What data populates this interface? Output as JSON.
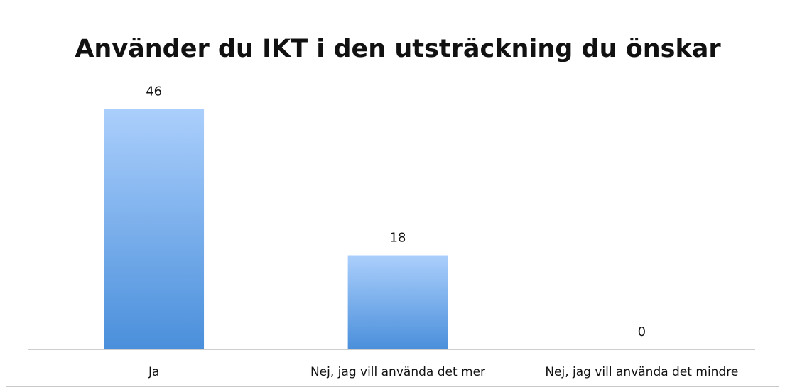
{
  "chart_data": {
    "type": "bar",
    "title": "Använder du IKT i den utsträckning du önskar",
    "categories": [
      "Ja",
      "Nej, jag vill använda det mer",
      "Nej, jag vill använda det mindre"
    ],
    "values": [
      46,
      18,
      0
    ],
    "color": "#5b9be0",
    "ylim": [
      0,
      50
    ]
  }
}
